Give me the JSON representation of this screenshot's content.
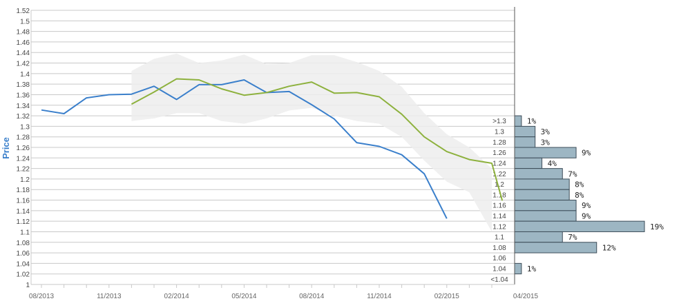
{
  "chart_data": {
    "type": "line",
    "ylabel": "Price",
    "ylim": [
      1.0,
      1.52
    ],
    "y_ticks": [
      "1",
      "1.02",
      "1.04",
      "1.06",
      "1.08",
      "1.1",
      "1.12",
      "1.14",
      "1.16",
      "1.18",
      "1.2",
      "1.22",
      "1.24",
      "1.26",
      "1.28",
      "1.3",
      "1.32",
      "1.34",
      "1.36",
      "1.38",
      "1.4",
      "1.42",
      "1.44",
      "1.46",
      "1.48",
      "1.5",
      "1.52"
    ],
    "x_ticks": [
      "08/2013",
      "11/2013",
      "02/2014",
      "05/2014",
      "08/2014",
      "11/2014",
      "02/2015",
      "04/2015"
    ],
    "grid": true,
    "series": [
      {
        "color": "#3a7fcb",
        "x": [
          "2013-08",
          "2013-09",
          "2013-10",
          "2013-11",
          "2013-12",
          "2014-01",
          "2014-02",
          "2014-03",
          "2014-04",
          "2014-05",
          "2014-06",
          "2014-07",
          "2014-08",
          "2014-09",
          "2014-10",
          "2014-11",
          "2014-12",
          "2015-01",
          "2015-02"
        ],
        "y": [
          1.331,
          1.324,
          1.354,
          1.36,
          1.361,
          1.376,
          1.351,
          1.379,
          1.379,
          1.388,
          1.364,
          1.366,
          1.341,
          1.314,
          1.269,
          1.262,
          1.246,
          1.21,
          1.125
        ]
      },
      {
        "color": "#8db13d",
        "x": [
          "2013-12",
          "2014-01",
          "2014-02",
          "2014-03",
          "2014-04",
          "2014-05",
          "2014-06",
          "2014-07",
          "2014-08",
          "2014-09",
          "2014-10",
          "2014-11",
          "2014-12",
          "2015-01",
          "2015-02",
          "2015-03",
          "2015-04",
          "2015-04-15"
        ],
        "y": [
          1.342,
          1.365,
          1.39,
          1.388,
          1.371,
          1.359,
          1.364,
          1.376,
          1.384,
          1.363,
          1.364,
          1.356,
          1.323,
          1.28,
          1.252,
          1.237,
          1.23,
          1.159
        ]
      }
    ],
    "band": {
      "color": "#ededed",
      "x": [
        "2013-12",
        "2014-01",
        "2014-02",
        "2014-03",
        "2014-04",
        "2014-05",
        "2014-06",
        "2014-07",
        "2014-08",
        "2014-09",
        "2014-10",
        "2014-11",
        "2014-12",
        "2015-01",
        "2015-02",
        "2015-03",
        "2015-04"
      ],
      "upper": [
        1.405,
        1.428,
        1.438,
        1.42,
        1.425,
        1.436,
        1.418,
        1.42,
        1.435,
        1.435,
        1.422,
        1.405,
        1.375,
        1.325,
        1.285,
        1.26,
        1.22
      ],
      "lower": [
        1.31,
        1.315,
        1.325,
        1.325,
        1.31,
        1.305,
        1.315,
        1.33,
        1.335,
        1.32,
        1.31,
        1.305,
        1.28,
        1.235,
        1.195,
        1.175,
        1.1
      ]
    },
    "histogram": {
      "color": "#9db6c3",
      "bins": [
        ">1.3",
        "1.3",
        "1.28",
        "1.26",
        "1.24",
        "1.22",
        "1.2",
        "1.18",
        "1.16",
        "1.14",
        "1.12",
        "1.1",
        "1.08",
        "1.06",
        "1.04",
        "<1.04"
      ],
      "percent_labels": [
        "1%",
        "3%",
        "3%",
        "9%",
        "4%",
        "7%",
        "8%",
        "8%",
        "9%",
        "9%",
        "19%",
        "7%",
        "12%",
        "",
        "1%",
        ""
      ],
      "values": [
        1,
        3,
        3,
        9,
        4,
        7,
        8,
        8,
        9,
        9,
        19,
        7,
        12,
        0,
        1,
        0
      ]
    }
  }
}
